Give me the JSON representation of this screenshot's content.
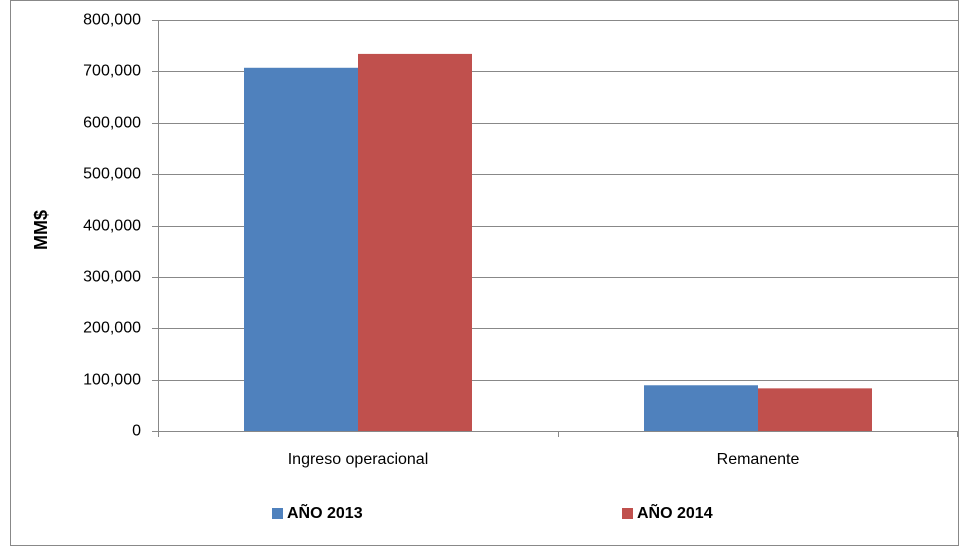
{
  "chart_data": {
    "type": "bar",
    "y_label": "MM$",
    "categories": [
      "Ingreso operacional",
      "Remanente"
    ],
    "series": [
      {
        "name": "AÑO 2013",
        "color": "#4f81bd",
        "values": [
          707000,
          89000
        ]
      },
      {
        "name": "AÑO 2014",
        "color": "#c0504d",
        "values": [
          734000,
          83000
        ]
      }
    ],
    "ylim": [
      0,
      800000
    ],
    "yticks": [
      0,
      {
        "value": 100000,
        "label": "100,000"
      },
      {
        "value": 200000,
        "label": "200,000"
      },
      {
        "value": 300000,
        "label": "300,000"
      },
      {
        "value": 400000,
        "label": "400,000"
      },
      {
        "value": 500000,
        "label": "500,000"
      },
      {
        "value": 600000,
        "label": "600,000"
      },
      {
        "value": 700000,
        "label": "700,000"
      },
      {
        "value": 800000,
        "label": "800,000"
      }
    ],
    "grid": true,
    "legend": "bottom"
  }
}
